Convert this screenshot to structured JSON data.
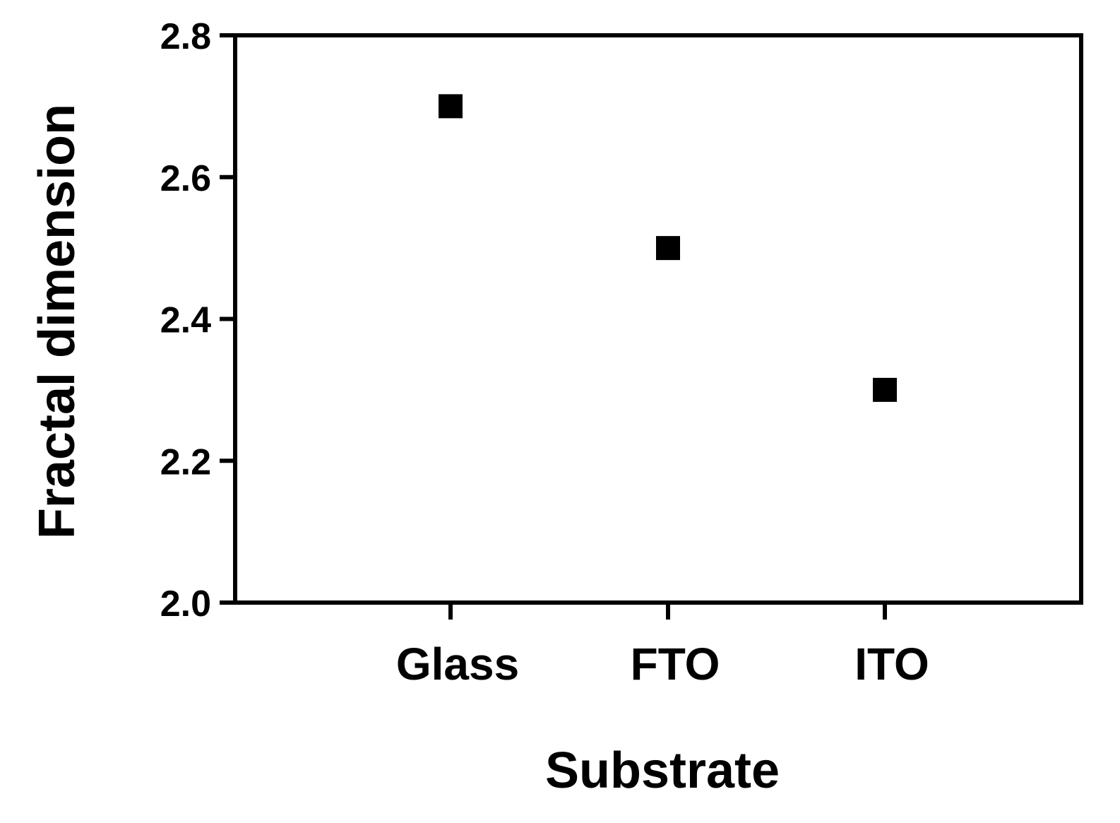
{
  "chart_data": {
    "type": "scatter",
    "title": "",
    "xlabel": "Substrate",
    "ylabel": "Fractal dimension",
    "categories": [
      "Glass",
      "FTO",
      "ITO"
    ],
    "values": [
      2.7,
      2.5,
      2.3
    ],
    "ylim": [
      2.0,
      2.8
    ],
    "yticks": [
      "2.0",
      "2.2",
      "2.4",
      "2.6",
      "2.8"
    ],
    "grid": false,
    "legend": "none",
    "marker": "square",
    "colors": {
      "marker": "#000000",
      "axis": "#000000",
      "background": "#ffffff"
    }
  }
}
